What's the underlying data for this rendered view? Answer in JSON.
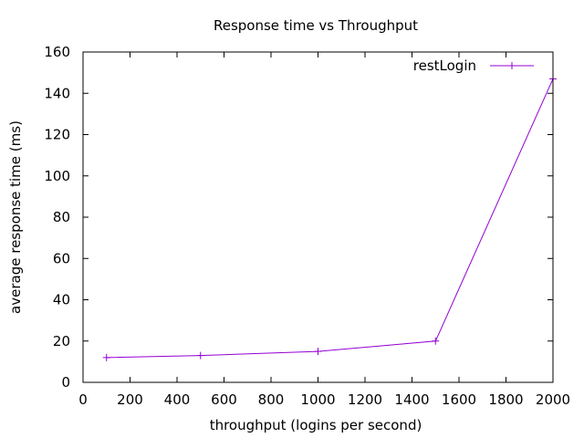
{
  "chart_data": {
    "type": "line",
    "title": "Response time vs Throughput",
    "xlabel": "throughput (logins per second)",
    "ylabel": "average response time (ms)",
    "xlim": [
      0,
      2000
    ],
    "ylim": [
      0,
      160
    ],
    "xticks": [
      0,
      200,
      400,
      600,
      800,
      1000,
      1200,
      1400,
      1600,
      1800,
      2000
    ],
    "yticks": [
      0,
      20,
      40,
      60,
      80,
      100,
      120,
      140,
      160
    ],
    "grid": false,
    "legend_position": "top-right",
    "series": [
      {
        "name": "restLogin",
        "color": "#9400d3",
        "marker": "plus",
        "x": [
          100,
          500,
          1000,
          1500,
          2000
        ],
        "y": [
          12,
          13,
          15,
          20,
          147
        ]
      }
    ]
  }
}
